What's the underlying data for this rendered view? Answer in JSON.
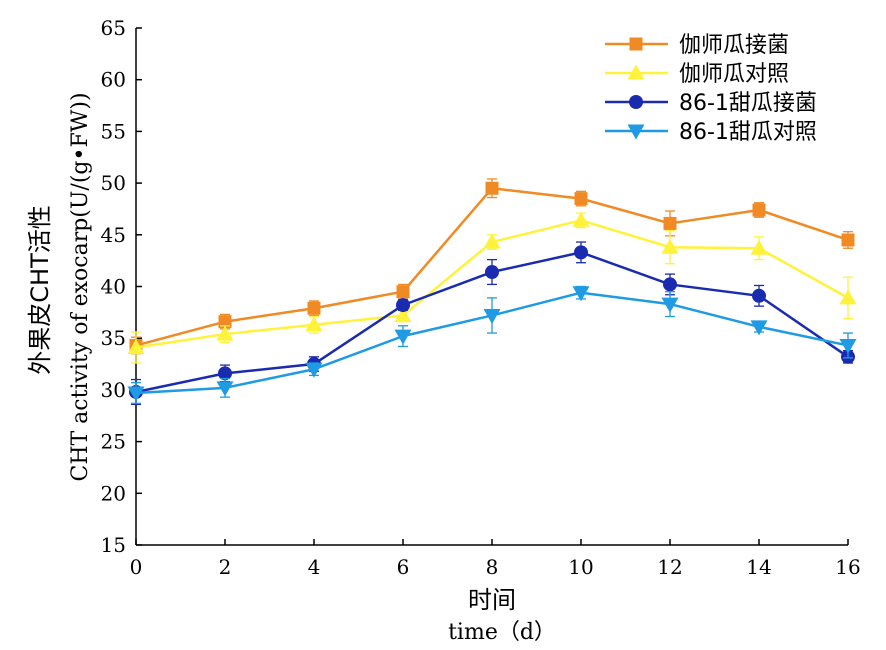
{
  "chart_data": {
    "type": "line",
    "xlabel_cn": "时间",
    "xlabel_en": "time（d）",
    "ylabel_cn": "外果皮CHT活性",
    "ylabel_en": "CHT activity of exocarp(U/(g•FW))",
    "x": [
      0,
      2,
      4,
      6,
      8,
      10,
      12,
      14,
      16
    ],
    "xlim": [
      0,
      16
    ],
    "ylim": [
      15,
      65
    ],
    "xticks": [
      "0",
      "2",
      "4",
      "6",
      "8",
      "10",
      "12",
      "14",
      "16"
    ],
    "yticks": [
      "15",
      "20",
      "25",
      "30",
      "35",
      "40",
      "45",
      "50",
      "55",
      "60",
      "65"
    ],
    "legend_position": "top-right",
    "series": [
      {
        "name": "伽师瓜接菌",
        "color": "#F08A24",
        "marker": "square",
        "values": [
          34.3,
          36.6,
          37.9,
          39.5,
          49.5,
          48.5,
          46.1,
          47.4,
          44.5
        ],
        "errors": [
          0.8,
          0.7,
          0.7,
          0.7,
          0.9,
          0.7,
          1.2,
          0.7,
          0.8
        ]
      },
      {
        "name": "伽师瓜对照",
        "color": "#FFF23A",
        "marker": "triangle-up",
        "values": [
          34.1,
          35.4,
          36.3,
          37.2,
          44.3,
          46.4,
          43.8,
          43.7,
          38.9
        ],
        "errors": [
          1.5,
          0.8,
          0.8,
          0.6,
          0.7,
          0.7,
          1.6,
          1.1,
          2.0
        ]
      },
      {
        "name": "86-1甜瓜接菌",
        "color": "#1A2BB0",
        "marker": "circle",
        "values": [
          29.8,
          31.6,
          32.5,
          38.2,
          41.4,
          43.3,
          40.2,
          39.1,
          33.2
        ],
        "errors": [
          1.2,
          0.8,
          0.7,
          0.5,
          1.2,
          1.0,
          1.0,
          1.0,
          0.6
        ]
      },
      {
        "name": "86-1甜瓜对照",
        "color": "#1E9BE3",
        "marker": "triangle-down",
        "values": [
          29.7,
          30.2,
          32.0,
          35.2,
          37.2,
          39.4,
          38.3,
          36.1,
          34.3
        ],
        "errors": [
          1.0,
          0.9,
          0.6,
          1.0,
          1.7,
          0.6,
          1.2,
          0.5,
          1.2
        ]
      }
    ]
  }
}
